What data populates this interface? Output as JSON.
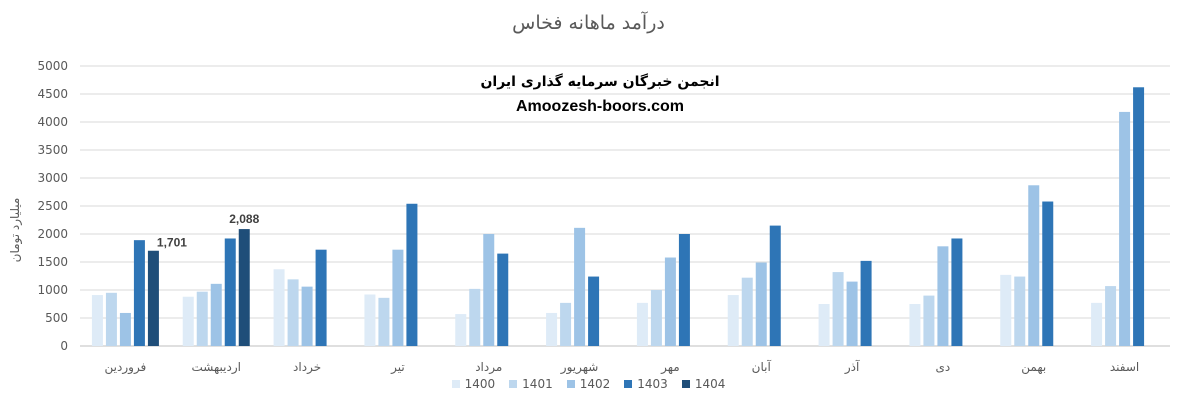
{
  "chart_data": {
    "type": "bar",
    "title": "درآمد ماهانه فخاس",
    "ylabel": "میلیارد تومان",
    "ylim": [
      0,
      5000
    ],
    "yticks": [
      0,
      500,
      1000,
      1500,
      2000,
      2500,
      3000,
      3500,
      4000,
      4500,
      5000
    ],
    "grid": true,
    "legend_position": "bottom",
    "categories": [
      "فروردین",
      "اردیبهشت",
      "خرداد",
      "تیر",
      "مرداد",
      "شهریور",
      "مهر",
      "آبان",
      "آذر",
      "دی",
      "بهمن",
      "اسفند"
    ],
    "series": [
      {
        "name": "1400",
        "color": "#deebf7",
        "values": [
          910,
          880,
          1370,
          920,
          570,
          590,
          770,
          910,
          750,
          750,
          1270,
          770
        ]
      },
      {
        "name": "1401",
        "color": "#bdd7ee",
        "values": [
          950,
          970,
          1190,
          860,
          1020,
          770,
          1000,
          1220,
          1320,
          900,
          1240,
          1070
        ]
      },
      {
        "name": "1402",
        "color": "#9dc3e6",
        "values": [
          590,
          1110,
          1060,
          1720,
          2000,
          2110,
          1580,
          1490,
          1150,
          1780,
          2870,
          4180
        ]
      },
      {
        "name": "1403",
        "color": "#2e75b6",
        "values": [
          1890,
          1920,
          1720,
          2540,
          1650,
          1240,
          2000,
          2150,
          1520,
          1920,
          2580,
          4620
        ]
      },
      {
        "name": "1404",
        "color": "#1f4e79",
        "values": [
          1701,
          2088,
          null,
          null,
          null,
          null,
          null,
          null,
          null,
          null,
          null,
          null
        ]
      }
    ],
    "data_labels": [
      {
        "series": "1404",
        "category": "فروردین",
        "text": "1,701"
      },
      {
        "series": "1404",
        "category": "اردیبهشت",
        "text": "2,088"
      }
    ]
  },
  "watermark": {
    "line1": "انجمن خبرگان سرمایه گذاری ایران",
    "line2": "Amoozesh-boors.com"
  }
}
